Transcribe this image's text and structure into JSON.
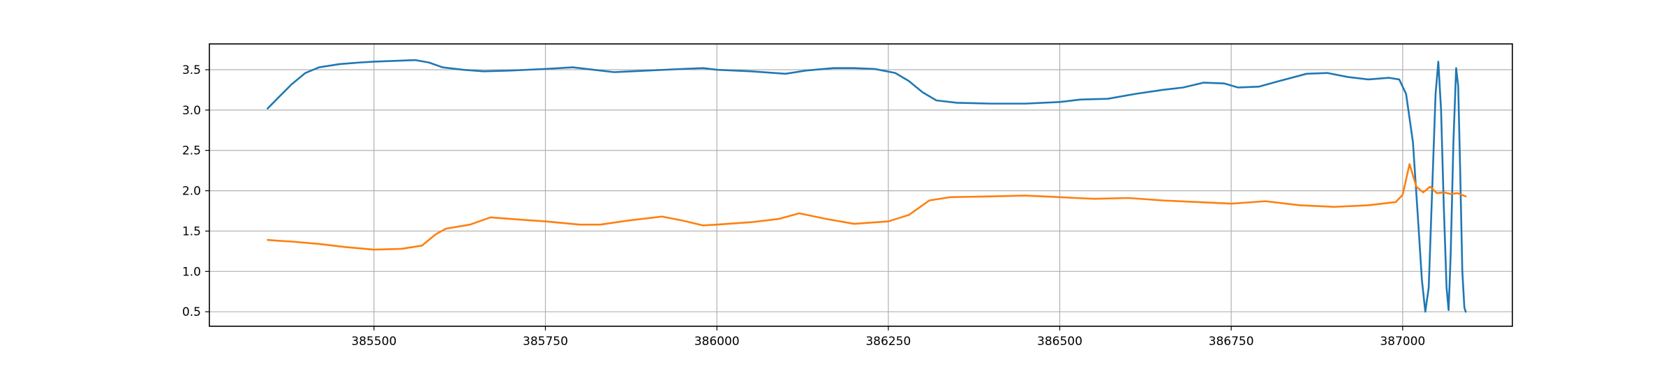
{
  "chart_data": {
    "type": "line",
    "title": "",
    "xlabel": "",
    "ylabel": "",
    "xlim": [
      385260,
      387160
    ],
    "ylim": [
      0.32,
      3.82
    ],
    "grid": true,
    "legend": "none",
    "x_ticks": [
      385500,
      385750,
      386000,
      386250,
      386500,
      386750,
      387000
    ],
    "x_tick_labels": [
      "385500",
      "385750",
      "386000",
      "386250",
      "386500",
      "386750",
      "387000"
    ],
    "y_ticks": [
      0.5,
      1.0,
      1.5,
      2.0,
      2.5,
      3.0,
      3.5
    ],
    "y_tick_labels": [
      "0.5",
      "1.0",
      "1.5",
      "2.0",
      "2.5",
      "3.0",
      "3.5"
    ],
    "series": [
      {
        "color": "#1f77b4",
        "points": [
          [
            385345,
            3.02
          ],
          [
            385360,
            3.15
          ],
          [
            385380,
            3.32
          ],
          [
            385400,
            3.46
          ],
          [
            385420,
            3.53
          ],
          [
            385450,
            3.57
          ],
          [
            385480,
            3.59
          ],
          [
            385500,
            3.6
          ],
          [
            385530,
            3.61
          ],
          [
            385560,
            3.62
          ],
          [
            385580,
            3.59
          ],
          [
            385600,
            3.53
          ],
          [
            385630,
            3.5
          ],
          [
            385660,
            3.48
          ],
          [
            385700,
            3.49
          ],
          [
            385750,
            3.51
          ],
          [
            385790,
            3.53
          ],
          [
            385820,
            3.5
          ],
          [
            385850,
            3.47
          ],
          [
            385900,
            3.49
          ],
          [
            385950,
            3.51
          ],
          [
            385980,
            3.52
          ],
          [
            386000,
            3.5
          ],
          [
            386050,
            3.48
          ],
          [
            386100,
            3.45
          ],
          [
            386130,
            3.49
          ],
          [
            386170,
            3.52
          ],
          [
            386200,
            3.52
          ],
          [
            386230,
            3.51
          ],
          [
            386260,
            3.46
          ],
          [
            386280,
            3.36
          ],
          [
            386300,
            3.22
          ],
          [
            386320,
            3.12
          ],
          [
            386350,
            3.09
          ],
          [
            386400,
            3.08
          ],
          [
            386450,
            3.08
          ],
          [
            386500,
            3.1
          ],
          [
            386530,
            3.13
          ],
          [
            386570,
            3.14
          ],
          [
            386610,
            3.2
          ],
          [
            386650,
            3.25
          ],
          [
            386680,
            3.28
          ],
          [
            386710,
            3.34
          ],
          [
            386740,
            3.33
          ],
          [
            386760,
            3.28
          ],
          [
            386790,
            3.29
          ],
          [
            386820,
            3.36
          ],
          [
            386860,
            3.45
          ],
          [
            386890,
            3.46
          ],
          [
            386920,
            3.41
          ],
          [
            386950,
            3.38
          ],
          [
            386980,
            3.4
          ],
          [
            386995,
            3.38
          ],
          [
            387005,
            3.2
          ],
          [
            387015,
            2.6
          ],
          [
            387022,
            1.7
          ],
          [
            387028,
            0.9
          ],
          [
            387033,
            0.5
          ],
          [
            387038,
            0.8
          ],
          [
            387043,
            2.0
          ],
          [
            387048,
            3.2
          ],
          [
            387052,
            3.6
          ],
          [
            387056,
            3.0
          ],
          [
            387060,
            1.8
          ],
          [
            387064,
            0.8
          ],
          [
            387067,
            0.52
          ],
          [
            387070,
            1.2
          ],
          [
            387074,
            2.6
          ],
          [
            387078,
            3.52
          ],
          [
            387081,
            3.3
          ],
          [
            387084,
            2.2
          ],
          [
            387087,
            1.0
          ],
          [
            387090,
            0.55
          ],
          [
            387092,
            0.5
          ]
        ]
      },
      {
        "color": "#ff7f0e",
        "points": [
          [
            385345,
            1.39
          ],
          [
            385360,
            1.38
          ],
          [
            385380,
            1.37
          ],
          [
            385420,
            1.34
          ],
          [
            385460,
            1.3
          ],
          [
            385500,
            1.27
          ],
          [
            385540,
            1.28
          ],
          [
            385570,
            1.32
          ],
          [
            385590,
            1.46
          ],
          [
            385605,
            1.53
          ],
          [
            385640,
            1.58
          ],
          [
            385670,
            1.67
          ],
          [
            385700,
            1.65
          ],
          [
            385750,
            1.62
          ],
          [
            385800,
            1.58
          ],
          [
            385830,
            1.58
          ],
          [
            385870,
            1.63
          ],
          [
            385920,
            1.68
          ],
          [
            385950,
            1.63
          ],
          [
            385980,
            1.57
          ],
          [
            386000,
            1.58
          ],
          [
            386050,
            1.61
          ],
          [
            386090,
            1.65
          ],
          [
            386120,
            1.72
          ],
          [
            386160,
            1.65
          ],
          [
            386200,
            1.59
          ],
          [
            386250,
            1.62
          ],
          [
            386280,
            1.7
          ],
          [
            386310,
            1.88
          ],
          [
            386340,
            1.92
          ],
          [
            386400,
            1.93
          ],
          [
            386450,
            1.94
          ],
          [
            386500,
            1.92
          ],
          [
            386550,
            1.9
          ],
          [
            386600,
            1.91
          ],
          [
            386650,
            1.88
          ],
          [
            386700,
            1.86
          ],
          [
            386750,
            1.84
          ],
          [
            386800,
            1.87
          ],
          [
            386850,
            1.82
          ],
          [
            386900,
            1.8
          ],
          [
            386950,
            1.82
          ],
          [
            386990,
            1.86
          ],
          [
            387000,
            1.95
          ],
          [
            387010,
            2.33
          ],
          [
            387020,
            2.05
          ],
          [
            387030,
            1.98
          ],
          [
            387040,
            2.05
          ],
          [
            387050,
            1.97
          ],
          [
            387060,
            1.98
          ],
          [
            387070,
            1.96
          ],
          [
            387080,
            1.97
          ],
          [
            387092,
            1.93
          ]
        ]
      }
    ]
  }
}
